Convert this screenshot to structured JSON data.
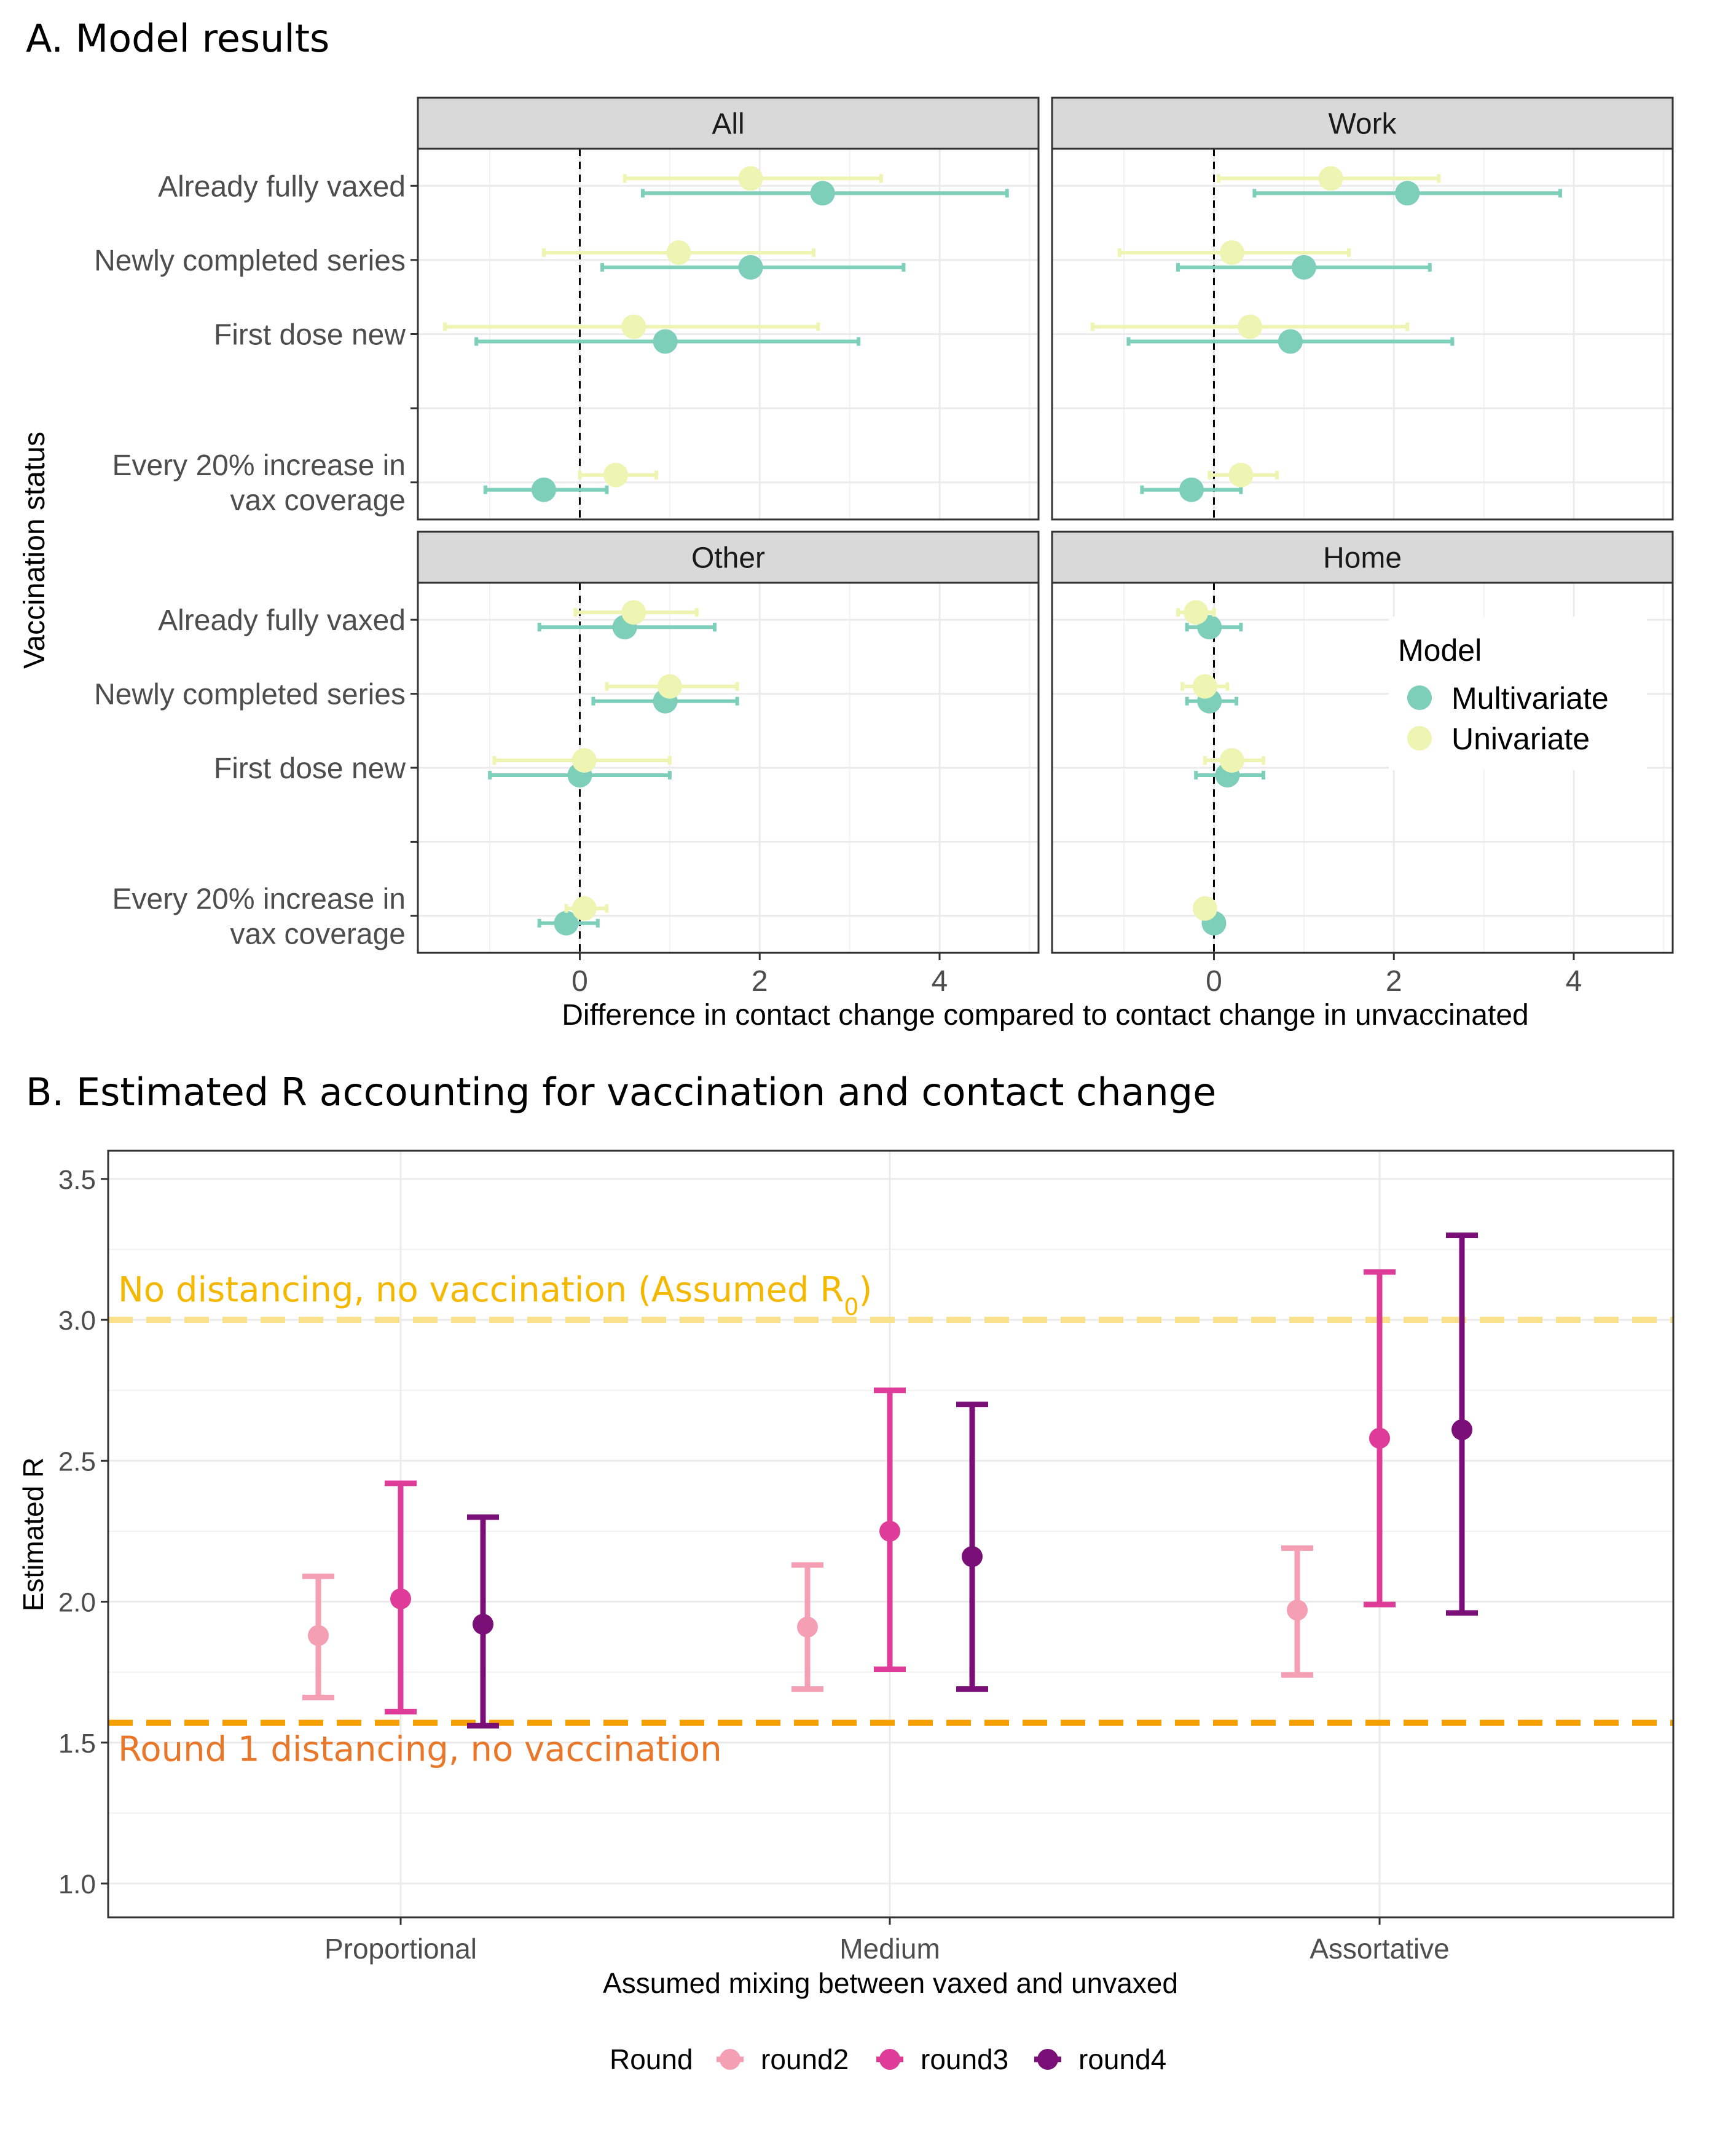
{
  "panel_a": {
    "title": "A. Model results",
    "chart_data": {
      "type": "forest",
      "facets": [
        "All",
        "Work",
        "Other",
        "Home"
      ],
      "categories": [
        "Already fully vaxed",
        "Newly completed series",
        "First dose new",
        "",
        "Every 20% increase in vax coverage"
      ],
      "category_lines": [
        [
          "Already fully vaxed"
        ],
        [
          "Newly completed series"
        ],
        [
          "First dose new"
        ],
        [
          ""
        ],
        [
          "Every 20% increase in",
          "vax coverage"
        ]
      ],
      "xlabel": "Difference in contact change compared to contact change in unvaccinated",
      "ylabel": "Vaccination status",
      "xlim": [
        -1.8,
        5.1
      ],
      "xticks": [
        0,
        2,
        4
      ],
      "reference_line": 0,
      "legend_title": "Model",
      "series": [
        {
          "name": "Multivariate",
          "color": "#7ecfb9",
          "facets": {
            "All": [
              {
                "est": 2.7,
                "lo": 0.7,
                "hi": 4.75
              },
              {
                "est": 1.9,
                "lo": 0.25,
                "hi": 3.6
              },
              {
                "est": 0.95,
                "lo": -1.15,
                "hi": 3.1
              },
              null,
              {
                "est": -0.4,
                "lo": -1.05,
                "hi": 0.3
              }
            ],
            "Work": [
              {
                "est": 2.15,
                "lo": 0.45,
                "hi": 3.85
              },
              {
                "est": 1.0,
                "lo": -0.4,
                "hi": 2.4
              },
              {
                "est": 0.85,
                "lo": -0.95,
                "hi": 2.65
              },
              null,
              {
                "est": -0.25,
                "lo": -0.8,
                "hi": 0.3
              }
            ],
            "Other": [
              {
                "est": 0.5,
                "lo": -0.45,
                "hi": 1.5
              },
              {
                "est": 0.95,
                "lo": 0.15,
                "hi": 1.75
              },
              {
                "est": 0.0,
                "lo": -1.0,
                "hi": 1.0
              },
              null,
              {
                "est": -0.15,
                "lo": -0.45,
                "hi": 0.2
              }
            ],
            "Home": [
              {
                "est": -0.05,
                "lo": -0.3,
                "hi": 0.3
              },
              {
                "est": -0.05,
                "lo": -0.3,
                "hi": 0.25
              },
              {
                "est": 0.15,
                "lo": -0.2,
                "hi": 0.55
              },
              null,
              {
                "est": 0.0,
                "lo": 0.0,
                "hi": 0.0
              }
            ]
          }
        },
        {
          "name": "Univariate",
          "color": "#eef5b2",
          "facets": {
            "All": [
              {
                "est": 1.9,
                "lo": 0.5,
                "hi": 3.35
              },
              {
                "est": 1.1,
                "lo": -0.4,
                "hi": 2.6
              },
              {
                "est": 0.6,
                "lo": -1.5,
                "hi": 2.65
              },
              null,
              {
                "est": 0.4,
                "lo": 0.0,
                "hi": 0.85
              }
            ],
            "Work": [
              {
                "est": 1.3,
                "lo": 0.05,
                "hi": 2.5
              },
              {
                "est": 0.2,
                "lo": -1.05,
                "hi": 1.5
              },
              {
                "est": 0.4,
                "lo": -1.35,
                "hi": 2.15
              },
              null,
              {
                "est": 0.3,
                "lo": -0.05,
                "hi": 0.7
              }
            ],
            "Other": [
              {
                "est": 0.6,
                "lo": -0.05,
                "hi": 1.3
              },
              {
                "est": 1.0,
                "lo": 0.3,
                "hi": 1.75
              },
              {
                "est": 0.05,
                "lo": -0.95,
                "hi": 1.0
              },
              null,
              {
                "est": 0.05,
                "lo": -0.15,
                "hi": 0.3
              }
            ],
            "Home": [
              {
                "est": -0.2,
                "lo": -0.4,
                "hi": 0.0
              },
              {
                "est": -0.1,
                "lo": -0.35,
                "hi": 0.15
              },
              {
                "est": 0.2,
                "lo": -0.1,
                "hi": 0.55
              },
              null,
              {
                "est": -0.1,
                "lo": -0.2,
                "hi": 0.0
              }
            ]
          }
        }
      ]
    }
  },
  "panel_b": {
    "title": "B. Estimated R accounting for vaccination and contact change",
    "chart_data": {
      "type": "errorbar",
      "categories": [
        "Proportional",
        "Medium",
        "Assortative"
      ],
      "xlabel": "Assumed mixing between vaxed and unvaxed",
      "ylabel": "Estimated R",
      "ylim": [
        0.88,
        3.6
      ],
      "yticks": [
        1.0,
        1.5,
        2.0,
        2.5,
        3.0,
        3.5
      ],
      "legend_title": "Round",
      "legend_position": "bottom",
      "series": [
        {
          "name": "round2",
          "color": "#f59fb5",
          "values": [
            {
              "est": 1.88,
              "lo": 1.66,
              "hi": 2.09
            },
            {
              "est": 1.91,
              "lo": 1.69,
              "hi": 2.13
            },
            {
              "est": 1.97,
              "lo": 1.74,
              "hi": 2.19
            }
          ]
        },
        {
          "name": "round3",
          "color": "#df3b99",
          "values": [
            {
              "est": 2.01,
              "lo": 1.61,
              "hi": 2.42
            },
            {
              "est": 2.25,
              "lo": 1.76,
              "hi": 2.75
            },
            {
              "est": 2.58,
              "lo": 1.99,
              "hi": 3.17
            }
          ]
        },
        {
          "name": "round4",
          "color": "#7a0f78",
          "values": [
            {
              "est": 1.92,
              "lo": 1.56,
              "hi": 2.3
            },
            {
              "est": 2.16,
              "lo": 1.69,
              "hi": 2.7
            },
            {
              "est": 2.61,
              "lo": 1.96,
              "hi": 3.3
            }
          ]
        }
      ],
      "reference_lines": [
        {
          "value": 3.0,
          "color": "#f9e08a",
          "label_prefix": "No distancing, no vaccination (Assumed R",
          "label_sub": "0",
          "label_suffix": ")",
          "label_color": "#f5b800"
        },
        {
          "value": 1.57,
          "color": "#f5a000",
          "label_prefix": "Round 1 distancing, no vaccination",
          "label_sub": "",
          "label_suffix": "",
          "label_color": "#e8772a"
        }
      ]
    }
  }
}
